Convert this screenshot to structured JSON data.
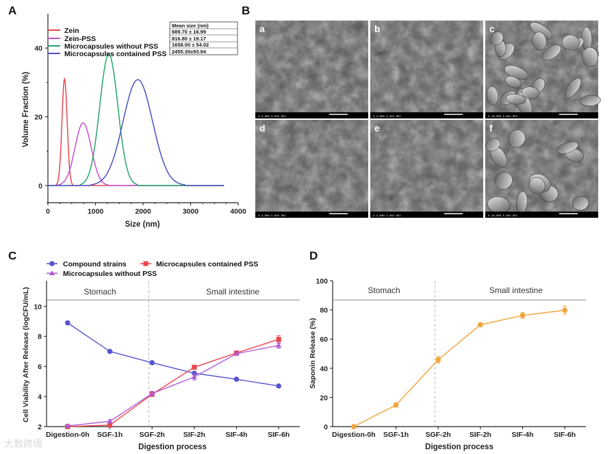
{
  "panels": {
    "A": "A",
    "B": "B",
    "C": "C",
    "D": "D"
  },
  "colors": {
    "zein": "#e8474e",
    "zein_pss": "#c64fd1",
    "mc_without": "#23a56b",
    "mc_contained": "#4b4fc2",
    "compound": "#5755d0",
    "mc_contained_c": "#e8474e",
    "mc_without_c": "#b05ad4",
    "saponin": "#f0a43a",
    "sem_bg": "#5d5d5d"
  },
  "chart_data": [
    {
      "id": "A",
      "type": "line",
      "xlabel": "Size (nm)",
      "ylabel": "Volume Fraction (%)",
      "xlim": [
        0,
        4000
      ],
      "ylim": [
        -5,
        50
      ],
      "xticks": [
        0,
        1000,
        2000,
        3000,
        4000
      ],
      "yticks": [
        0,
        20,
        40
      ],
      "series": [
        {
          "name": "Zein",
          "peak_x": 350,
          "peak_y": 31,
          "width": 55
        },
        {
          "name": "Zein-PSS",
          "peak_x": 740,
          "peak_y": 18.2,
          "width": 170
        },
        {
          "name": "Microcapsules without PSS",
          "peak_x": 1280,
          "peak_y": 38.2,
          "width": 190
        },
        {
          "name": "Microcapsules contained PSS",
          "peak_x": 1890,
          "peak_y": 30.8,
          "width": 310
        }
      ],
      "table": {
        "header": "Mean size (nm)",
        "rows": [
          "689.70 ± 16.99",
          "816.80 ± 19.17",
          "1658.00 ± 54.02",
          "2455.30±93.94"
        ]
      }
    },
    {
      "id": "C",
      "type": "line",
      "xlabel": "Digestion process",
      "ylabel": "Cell Viability After Release (logCFU/mL)",
      "categories": [
        "Digestion-0h",
        "SGF-1h",
        "SGF-2h",
        "SIF-2h",
        "SIF-4h",
        "SIF-6h"
      ],
      "ylim": [
        2,
        11.7
      ],
      "yticks": [
        2,
        4,
        6,
        8,
        10
      ],
      "regions": [
        "Stomach",
        "Small intestine"
      ],
      "series": [
        {
          "name": "Compound strains",
          "values": [
            8.9,
            7.0,
            6.25,
            5.55,
            5.15,
            4.7
          ],
          "errors": [
            0.05,
            0.1,
            0.08,
            0.08,
            0.08,
            0.08
          ]
        },
        {
          "name": "Microcapsules contained PSS",
          "values": [
            2.0,
            2.1,
            4.15,
            5.95,
            6.9,
            7.8
          ],
          "errors": [
            0.05,
            0.1,
            0.15,
            0.12,
            0.12,
            0.25
          ]
        },
        {
          "name": "Microcapsules without PSS",
          "values": [
            2.05,
            2.35,
            4.2,
            5.3,
            6.85,
            7.4
          ],
          "errors": [
            0.05,
            0.12,
            0.15,
            0.2,
            0.12,
            0.18
          ]
        }
      ]
    },
    {
      "id": "D",
      "type": "line",
      "xlabel": "Digestion process",
      "ylabel": "Saponin Release (%)",
      "categories": [
        "Digestion-0h",
        "SGF-1h",
        "SGF-2h",
        "SIF-2h",
        "SIF-4h",
        "SIF-6h"
      ],
      "ylim": [
        0,
        100
      ],
      "yticks": [
        0,
        20,
        40,
        60,
        80,
        100
      ],
      "regions": [
        "Stomach",
        "Small intestine"
      ],
      "series": [
        {
          "name": "Saponin",
          "values": [
            0,
            14.8,
            45.8,
            69.8,
            76.2,
            79.8
          ],
          "errors": [
            0.3,
            1.5,
            2.2,
            1.2,
            2.0,
            2.8
          ]
        }
      ]
    }
  ],
  "sem": {
    "labels": [
      "a",
      "b",
      "c",
      "d",
      "e",
      "f"
    ],
    "info": [
      "X 3,000  5.0kV  SEI",
      "X 3,000  5.0kV  SEI",
      "X 10,000  5.0kV  SEI",
      "X 3,000  5.0kV  SEI",
      "X 3,000  5.0kV  SEI",
      "X 10,000  5.0kV  SEI"
    ]
  },
  "watermark": "大数跨境"
}
